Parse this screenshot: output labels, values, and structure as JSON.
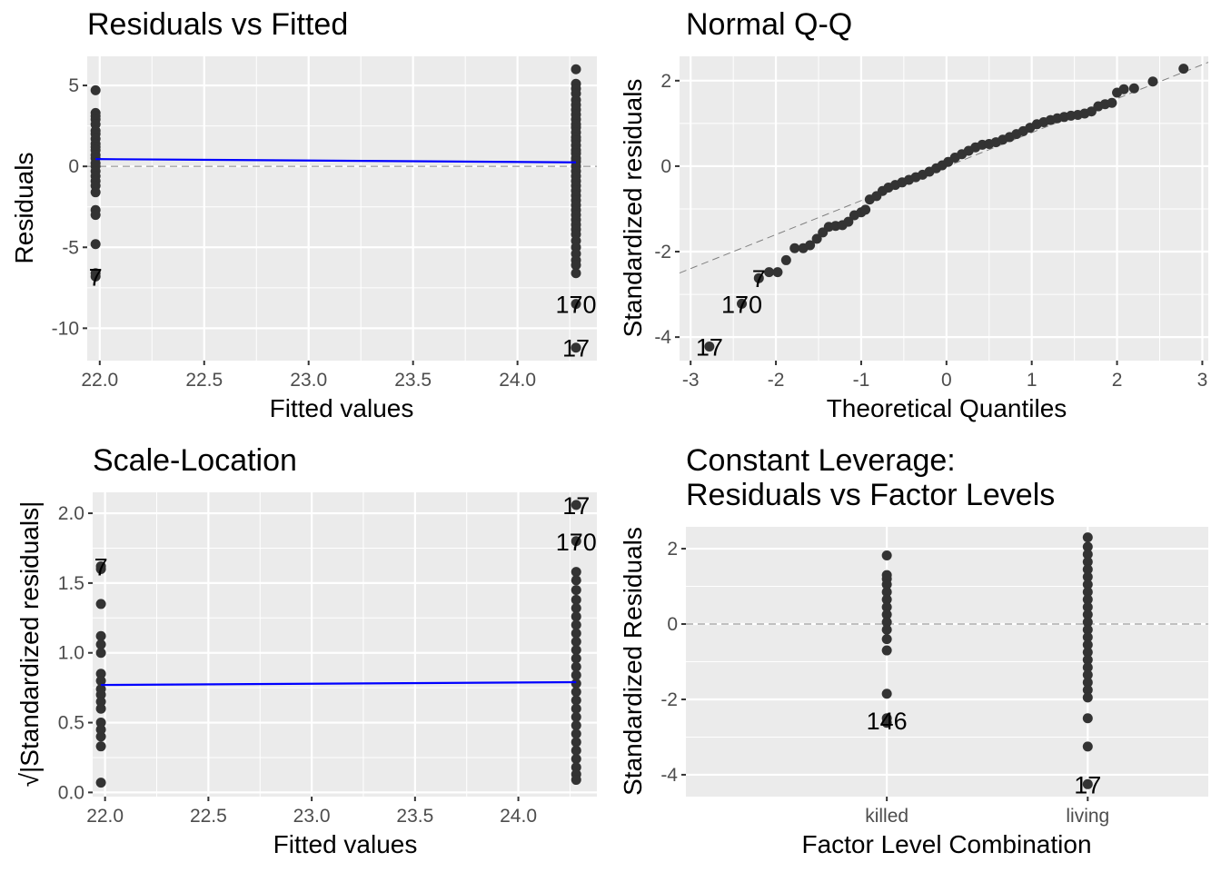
{
  "chart_data": [
    {
      "type": "scatter",
      "title": "Residuals vs Fitted",
      "xlabel": "Fitted values",
      "ylabel": "Residuals",
      "xlim": [
        21.94,
        24.38
      ],
      "ylim": [
        -12.0,
        6.8
      ],
      "xticks": [
        22.0,
        22.5,
        23.0,
        23.5,
        24.0
      ],
      "xtick_labels": [
        "22.0",
        "22.5",
        "23.0",
        "23.5",
        "24.0"
      ],
      "yticks": [
        -10,
        -5,
        0,
        5
      ],
      "ytick_labels": [
        "-10",
        "-5",
        "0",
        "5"
      ],
      "hline": 0,
      "smooth": [
        [
          21.98,
          0.45
        ],
        [
          24.28,
          0.25
        ]
      ],
      "smooth_color": "#0000FF",
      "groups": [
        {
          "x": 21.98,
          "y": [
            4.7,
            3.3,
            3.1,
            2.9,
            2.6,
            2.2,
            2.0,
            1.7,
            1.4,
            1.2,
            1.0,
            0.7,
            0.5,
            0.2,
            0.0,
            -0.3,
            -0.6,
            -0.9,
            -1.2,
            -1.6,
            -2.7,
            -3.0,
            -4.8,
            -6.6,
            -6.8
          ]
        },
        {
          "x": 24.28,
          "y": [
            6.0,
            5.1,
            4.8,
            4.5,
            4.1,
            3.8,
            3.5,
            3.2,
            2.9,
            2.6,
            2.4,
            2.1,
            1.8,
            1.6,
            1.3,
            1.0,
            0.8,
            0.5,
            0.3,
            0.0,
            -0.3,
            -0.6,
            -0.9,
            -1.2,
            -1.5,
            -1.8,
            -2.1,
            -2.4,
            -2.7,
            -3.0,
            -3.3,
            -3.6,
            -3.9,
            -4.2,
            -4.6,
            -5.0,
            -5.4,
            -5.8,
            -6.1,
            -6.6,
            -8.5,
            -11.2
          ]
        }
      ],
      "labels": [
        {
          "text": "7",
          "x": 21.98,
          "y": -6.8
        },
        {
          "text": "170",
          "x": 24.28,
          "y": -8.5
        },
        {
          "text": "17",
          "x": 24.28,
          "y": -11.2
        }
      ]
    },
    {
      "type": "scatter",
      "title": "Normal Q-Q",
      "xlabel": "Theoretical Quantiles",
      "ylabel": "Standardized residuals",
      "xlim": [
        -3.13,
        3.07
      ],
      "ylim": [
        -4.55,
        2.57
      ],
      "xticks": [
        -3,
        -2,
        -1,
        0,
        1,
        2,
        3
      ],
      "xtick_labels": [
        "-3",
        "-2",
        "-1",
        "0",
        "1",
        "2",
        "3"
      ],
      "yticks": [
        -4,
        -2,
        0,
        2
      ],
      "ytick_labels": [
        "-4",
        "-2",
        "0",
        "2"
      ],
      "refline": [
        [
          -3.13,
          -2.5
        ],
        [
          3.07,
          2.43
        ]
      ],
      "points": [
        [
          -2.78,
          -4.22
        ],
        [
          -2.4,
          -3.22
        ],
        [
          -2.2,
          -2.62
        ],
        [
          -2.08,
          -2.48
        ],
        [
          -1.98,
          -2.48
        ],
        [
          -1.88,
          -2.2
        ],
        [
          -1.78,
          -1.92
        ],
        [
          -1.68,
          -1.92
        ],
        [
          -1.6,
          -1.85
        ],
        [
          -1.52,
          -1.7
        ],
        [
          -1.45,
          -1.55
        ],
        [
          -1.38,
          -1.42
        ],
        [
          -1.3,
          -1.4
        ],
        [
          -1.22,
          -1.38
        ],
        [
          -1.15,
          -1.3
        ],
        [
          -1.08,
          -1.15
        ],
        [
          -1.0,
          -1.08
        ],
        [
          -0.95,
          -1.02
        ],
        [
          -0.9,
          -0.78
        ],
        [
          -0.82,
          -0.7
        ],
        [
          -0.75,
          -0.58
        ],
        [
          -0.68,
          -0.5
        ],
        [
          -0.6,
          -0.44
        ],
        [
          -0.52,
          -0.38
        ],
        [
          -0.44,
          -0.32
        ],
        [
          -0.36,
          -0.26
        ],
        [
          -0.28,
          -0.2
        ],
        [
          -0.2,
          -0.13
        ],
        [
          -0.12,
          -0.05
        ],
        [
          -0.05,
          0.02
        ],
        [
          0.02,
          0.1
        ],
        [
          0.1,
          0.2
        ],
        [
          0.18,
          0.28
        ],
        [
          0.26,
          0.36
        ],
        [
          0.34,
          0.44
        ],
        [
          0.42,
          0.5
        ],
        [
          0.5,
          0.52
        ],
        [
          0.58,
          0.56
        ],
        [
          0.66,
          0.62
        ],
        [
          0.74,
          0.68
        ],
        [
          0.82,
          0.75
        ],
        [
          0.9,
          0.82
        ],
        [
          0.98,
          0.9
        ],
        [
          1.06,
          0.98
        ],
        [
          1.14,
          1.03
        ],
        [
          1.22,
          1.08
        ],
        [
          1.3,
          1.12
        ],
        [
          1.38,
          1.15
        ],
        [
          1.46,
          1.18
        ],
        [
          1.54,
          1.2
        ],
        [
          1.62,
          1.23
        ],
        [
          1.7,
          1.28
        ],
        [
          1.78,
          1.4
        ],
        [
          1.86,
          1.45
        ],
        [
          1.94,
          1.48
        ],
        [
          2.0,
          1.72
        ],
        [
          2.08,
          1.8
        ],
        [
          2.2,
          1.82
        ],
        [
          2.42,
          1.98
        ],
        [
          2.78,
          2.28
        ]
      ],
      "labels": [
        {
          "text": "7",
          "x": -2.2,
          "y": -2.62
        },
        {
          "text": "170",
          "x": -2.4,
          "y": -3.22
        },
        {
          "text": "17",
          "x": -2.78,
          "y": -4.22
        }
      ]
    },
    {
      "type": "scatter",
      "title": "Scale-Location",
      "xlabel": "Fitted values",
      "ylabel": "√|Standardized residuals|",
      "xlim": [
        21.94,
        24.38
      ],
      "ylim": [
        -0.03,
        2.15
      ],
      "xticks": [
        22.0,
        22.5,
        23.0,
        23.5,
        24.0
      ],
      "xtick_labels": [
        "22.0",
        "22.5",
        "23.0",
        "23.5",
        "24.0"
      ],
      "yticks": [
        0.0,
        0.5,
        1.0,
        1.5,
        2.0
      ],
      "ytick_labels": [
        "0.0",
        "0.5",
        "1.0",
        "1.5",
        "2.0"
      ],
      "smooth": [
        [
          21.98,
          0.77
        ],
        [
          24.28,
          0.79
        ]
      ],
      "smooth_color": "#0000FF",
      "groups": [
        {
          "x": 21.98,
          "y": [
            1.62,
            1.6,
            1.35,
            1.12,
            1.06,
            1.0,
            0.85,
            0.8,
            0.74,
            0.7,
            0.65,
            0.6,
            0.5,
            0.45,
            0.4,
            0.33,
            0.07
          ]
        },
        {
          "x": 24.28,
          "y": [
            2.06,
            1.8,
            1.58,
            1.52,
            1.45,
            1.38,
            1.32,
            1.26,
            1.2,
            1.14,
            1.08,
            1.02,
            0.96,
            0.9,
            0.84,
            0.78,
            0.72,
            0.66,
            0.6,
            0.54,
            0.48,
            0.42,
            0.36,
            0.3,
            0.24,
            0.18,
            0.13,
            0.09
          ]
        }
      ],
      "labels": [
        {
          "text": "17",
          "x": 24.28,
          "y": 2.06
        },
        {
          "text": "170",
          "x": 24.28,
          "y": 1.8
        },
        {
          "text": "7",
          "x": 21.98,
          "y": 1.62
        }
      ]
    },
    {
      "type": "scatter",
      "title": "Constant Leverage:",
      "title2": "Residuals vs Factor Levels",
      "xlabel": "Factor Level Combination",
      "ylabel": "Standardized Residuals",
      "categories": [
        "killed",
        "living"
      ],
      "xlim": [
        0.0,
        2.6
      ],
      "ylim": [
        -4.58,
        2.58
      ],
      "xticks": [
        1,
        2
      ],
      "xtick_labels": [
        "killed",
        "living"
      ],
      "yticks": [
        -4,
        -2,
        0,
        2
      ],
      "ytick_labels": [
        "-4",
        "-2",
        "0",
        "2"
      ],
      "hline": 0,
      "groups": [
        {
          "x": 1,
          "y": [
            1.82,
            1.3,
            1.2,
            1.05,
            0.85,
            0.65,
            0.45,
            0.25,
            0.05,
            -0.15,
            -0.4,
            -0.7,
            -1.85,
            -2.5,
            -2.62
          ]
        },
        {
          "x": 2,
          "y": [
            2.3,
            2.05,
            1.85,
            1.65,
            1.45,
            1.25,
            1.05,
            0.85,
            0.65,
            0.45,
            0.25,
            0.05,
            -0.15,
            -0.35,
            -0.55,
            -0.75,
            -0.95,
            -1.15,
            -1.35,
            -1.55,
            -1.75,
            -1.95,
            -2.5,
            -3.25,
            -4.25
          ]
        }
      ],
      "labels": [
        {
          "text": "146",
          "x": 1,
          "y": -2.55
        },
        {
          "text": "17",
          "x": 2,
          "y": -4.25
        }
      ]
    }
  ]
}
